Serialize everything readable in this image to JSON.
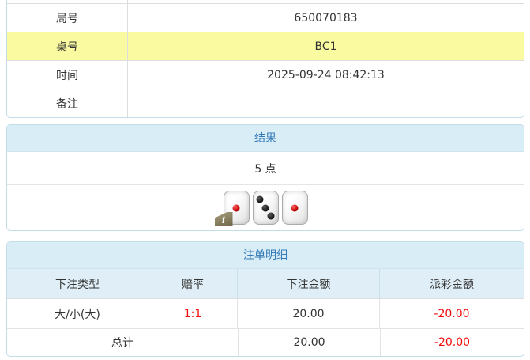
{
  "info_table": {
    "rows": [
      {
        "label": "局号",
        "value": "650070183",
        "highlight": false
      },
      {
        "label": "桌号",
        "value": "BC1",
        "highlight": true
      },
      {
        "label": "时间",
        "value": "2025-09-24 08:42:13",
        "highlight": false
      },
      {
        "label": "备注",
        "value": "",
        "highlight": false
      }
    ]
  },
  "result_panel": {
    "title": "结果",
    "summary": "5 点",
    "info_badge": "i",
    "dice": [
      {
        "value": 1,
        "pip_color": "red",
        "has_info_badge": true
      },
      {
        "value": 3,
        "pip_color": "black",
        "has_info_badge": false
      },
      {
        "value": 1,
        "pip_color": "red",
        "has_info_badge": false
      }
    ]
  },
  "bets_panel": {
    "title": "注单明细",
    "columns": [
      "下注类型",
      "赔率",
      "下注金额",
      "派彩金额"
    ],
    "rows": [
      {
        "bet_type": "大/小(大)",
        "odds": "1:1",
        "bet_amount": "20.00",
        "payout": "-20.00"
      }
    ],
    "total": {
      "label": "总计",
      "bet_amount": "20.00",
      "payout": "-20.00"
    }
  },
  "colors": {
    "highlight_row": "#fafaa1",
    "panel_border": "#c3dde7",
    "heading_bg": "#d9edf7",
    "heading_text": "#337ab7",
    "negative_red": "#f20d0d",
    "red_pip": "#c40000",
    "black_pip": "#111111"
  }
}
